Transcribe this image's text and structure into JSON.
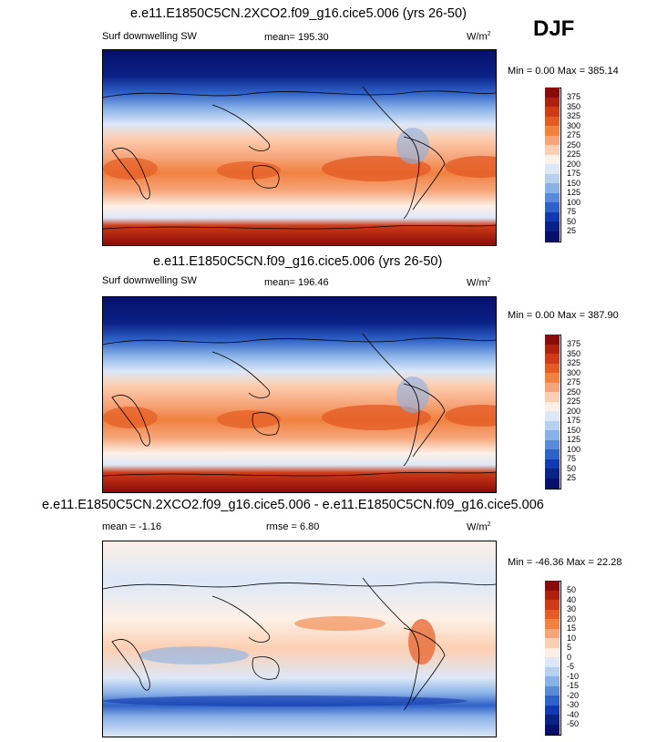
{
  "season": "DJF",
  "panels": [
    {
      "title": "e.e11.E1850C5CN.2XCO2.f09_g16.cice5.006 (yrs 26-50)",
      "variable": "Surf downwelling SW",
      "stat": "mean= 195.30",
      "unit": "W/m",
      "unit_exp": "2",
      "minmax": "Min =   0.00 Max = 385.14",
      "colorbar": {
        "labels": [
          "375",
          "350",
          "325",
          "300",
          "275",
          "250",
          "225",
          "200",
          "175",
          "150",
          "125",
          "100",
          "75",
          "50",
          "25"
        ],
        "colors": [
          "#8a0b0b",
          "#b0200f",
          "#cf3b16",
          "#e45c25",
          "#f0813f",
          "#f6a57a",
          "#fccfb2",
          "#fdf0e6",
          "#dce8f8",
          "#b7d0f0",
          "#89b1e6",
          "#5a8ad8",
          "#2f62c8",
          "#1239ad",
          "#0a2186",
          "#06106a"
        ]
      }
    },
    {
      "title": "e.e11.E1850C5CN.f09_g16.cice5.006 (yrs 26-50)",
      "variable": "Surf downwelling SW",
      "stat": "mean= 196.46",
      "unit": "W/m",
      "unit_exp": "2",
      "minmax": "Min =   0.00 Max = 387.90",
      "colorbar": {
        "labels": [
          "375",
          "350",
          "325",
          "300",
          "275",
          "250",
          "225",
          "200",
          "175",
          "150",
          "125",
          "100",
          "75",
          "50",
          "25"
        ],
        "colors": [
          "#8a0b0b",
          "#b0200f",
          "#cf3b16",
          "#e45c25",
          "#f0813f",
          "#f6a57a",
          "#fccfb2",
          "#fdf0e6",
          "#dce8f8",
          "#b7d0f0",
          "#89b1e6",
          "#5a8ad8",
          "#2f62c8",
          "#1239ad",
          "#0a2186",
          "#06106a"
        ]
      }
    },
    {
      "title": "e.e11.E1850C5CN.2XCO2.f09_g16.cice5.006 - e.e11.E1850C5CN.f09_g16.cice5.006",
      "variable": "mean =  -1.16",
      "stat": "rmse =   6.80",
      "unit": "W/m",
      "unit_exp": "2",
      "minmax": "Min = -46.36 Max =  22.28",
      "colorbar": {
        "labels": [
          "50",
          "40",
          "30",
          "20",
          "15",
          "10",
          "5",
          "0",
          "-5",
          "-10",
          "-15",
          "-20",
          "-30",
          "-40",
          "-50"
        ],
        "colors": [
          "#8a0b0b",
          "#b0200f",
          "#cf3b16",
          "#e45c25",
          "#f0813f",
          "#f6a57a",
          "#fccfb2",
          "#fdf0e6",
          "#dce8f8",
          "#b7d0f0",
          "#89b1e6",
          "#5a8ad8",
          "#2f62c8",
          "#1239ad",
          "#0a2186",
          "#06106a"
        ]
      }
    }
  ]
}
